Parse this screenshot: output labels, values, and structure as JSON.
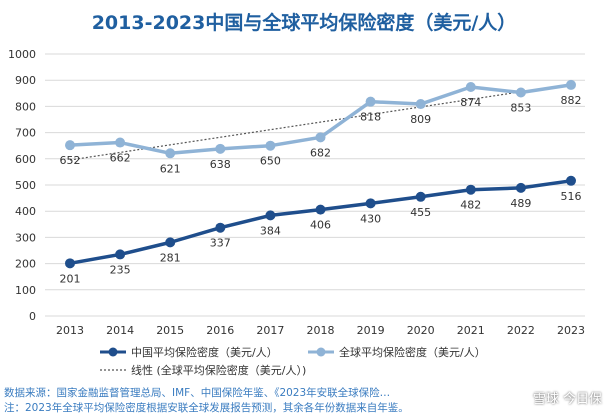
{
  "chart_data": {
    "type": "line",
    "title": "2013-2023中国与全球平均保险密度（美元/人）",
    "categories": [
      "2013",
      "2014",
      "2015",
      "2016",
      "2017",
      "2018",
      "2019",
      "2020",
      "2021",
      "2022",
      "2023"
    ],
    "ylim": [
      0,
      1000
    ],
    "yticks": [
      "0",
      "100",
      "200",
      "300",
      "400",
      "500",
      "600",
      "700",
      "800",
      "900",
      "1000"
    ],
    "grid": true,
    "legend_position": "bottom",
    "series": [
      {
        "name": "中国平均保险密度（美元/人）",
        "color": "#1f4e8c",
        "values": [
          201,
          235,
          281,
          337,
          384,
          406,
          430,
          455,
          482,
          489,
          516
        ],
        "labels": [
          "201",
          "235",
          "281",
          "337",
          "384",
          "406",
          "430",
          "455",
          "482",
          "489",
          "516"
        ]
      },
      {
        "name": "全球平均保险密度（美元/人）",
        "color": "#8fb3d6",
        "values": [
          652,
          662,
          621,
          638,
          650,
          682,
          818,
          809,
          874,
          853,
          882
        ],
        "labels": [
          "652",
          "662",
          "621",
          "638",
          "650",
          "682",
          "818",
          "809",
          "874",
          "853",
          "882"
        ]
      }
    ],
    "trendline": {
      "name": "线性 (全球平均保险密度（美元/人）)",
      "color": "#555555"
    }
  },
  "footer": {
    "line1": "数据来源：国家金融监督管理总局、IMF、中国保险年鉴、《2023年安联全球保险…",
    "line2": "注：2023年全球平均保险密度根据安联全球发展报告预测，其余各年份数据来自年鉴。"
  },
  "watermark": "雪球 今日保"
}
